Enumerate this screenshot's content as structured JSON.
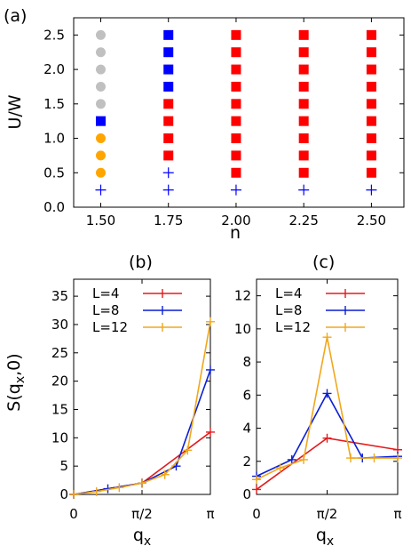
{
  "colors": {
    "gray": "#c0c0c0",
    "blue": "#0000ff",
    "red": "#ff0000",
    "orange": "#ffa500",
    "L4": "#e31a1c",
    "L8": "#0a1fd4",
    "L12": "#f0a71c"
  },
  "panels": {
    "a": {
      "label": "(a)"
    },
    "b": {
      "label": "(b)"
    },
    "c": {
      "label": "(c)"
    }
  },
  "chart_data": [
    {
      "panel": "(a)",
      "type": "scatter",
      "xlabel": "n",
      "ylabel": "U/W",
      "xlim": [
        1.4,
        2.62
      ],
      "ylim": [
        0.0,
        2.75
      ],
      "xticks": [
        "1.50",
        "1.75",
        "2.00",
        "2.25",
        "2.50"
      ],
      "yticks": [
        "0.0",
        "0.5",
        "1.0",
        "1.5",
        "2.0",
        "2.5"
      ],
      "grid": false,
      "marker_legend": {
        "gray-circle": "gray",
        "orange-circle": "orange",
        "blue-square": "blue",
        "red-square": "red",
        "blue-plus": "blue"
      },
      "columns": [
        {
          "x": 1.5,
          "markers": [
            "blue-plus",
            "orange-circle",
            "orange-circle",
            "orange-circle",
            "blue-square",
            "gray-circle",
            "gray-circle",
            "gray-circle",
            "gray-circle",
            "gray-circle"
          ]
        },
        {
          "x": 1.75,
          "markers": [
            "blue-plus",
            "blue-plus",
            "red-square",
            "red-square",
            "red-square",
            "red-square",
            "blue-square",
            "blue-square",
            "blue-square",
            "blue-square"
          ]
        },
        {
          "x": 2.0,
          "markers": [
            "blue-plus",
            "red-square",
            "red-square",
            "red-square",
            "red-square",
            "red-square",
            "red-square",
            "red-square",
            "red-square",
            "red-square"
          ]
        },
        {
          "x": 2.25,
          "markers": [
            "blue-plus",
            "red-square",
            "red-square",
            "red-square",
            "red-square",
            "red-square",
            "red-square",
            "red-square",
            "red-square",
            "red-square"
          ]
        },
        {
          "x": 2.5,
          "markers": [
            "blue-plus",
            "red-square",
            "red-square",
            "red-square",
            "red-square",
            "red-square",
            "red-square",
            "red-square",
            "red-square",
            "red-square"
          ]
        }
      ],
      "y_values": [
        0.25,
        0.5,
        0.75,
        1.0,
        1.25,
        1.5,
        1.75,
        2.0,
        2.25,
        2.5
      ]
    },
    {
      "panel": "(b)",
      "type": "line",
      "xlabel": "q",
      "xlabel_sub": "x",
      "ylabel": "S(q",
      "ylabel_sub": "x",
      "ylabel_tail": ",0)",
      "xlim": [
        0,
        3.14159
      ],
      "ylim": [
        0,
        38
      ],
      "xticks": [
        {
          "v": 0,
          "t": "0"
        },
        {
          "v": 1.5708,
          "t": "π/2"
        },
        {
          "v": 3.14159,
          "t": "π"
        }
      ],
      "yticks": [
        "0",
        "5",
        "10",
        "15",
        "20",
        "25",
        "30",
        "35"
      ],
      "legend_position": "top-left",
      "series": [
        {
          "name": "L=4",
          "color_key": "L4",
          "x": [
            0,
            1.5708,
            3.14159
          ],
          "y": [
            0,
            2.0,
            11.0
          ]
        },
        {
          "name": "L=8",
          "color_key": "L8",
          "x": [
            0,
            0.7854,
            1.5708,
            2.3562,
            3.14159
          ],
          "y": [
            0,
            1.0,
            2.0,
            5.0,
            22.0
          ]
        },
        {
          "name": "L=12",
          "color_key": "L12",
          "x": [
            0,
            0.5236,
            1.0472,
            1.5708,
            2.0944,
            2.618,
            3.14159
          ],
          "y": [
            0,
            0.5,
            1.2,
            2.0,
            3.5,
            7.8,
            30.5
          ]
        }
      ]
    },
    {
      "panel": "(c)",
      "type": "line",
      "xlabel": "q",
      "xlabel_sub": "x",
      "xlim": [
        0,
        3.14159
      ],
      "ylim": [
        0,
        13
      ],
      "xticks": [
        {
          "v": 0,
          "t": "0"
        },
        {
          "v": 1.5708,
          "t": "π/2"
        },
        {
          "v": 3.14159,
          "t": "π"
        }
      ],
      "yticks": [
        "0",
        "2",
        "4",
        "6",
        "8",
        "10",
        "12"
      ],
      "legend_position": "top-left",
      "series": [
        {
          "name": "L=4",
          "color_key": "L4",
          "x": [
            0,
            1.5708,
            3.14159
          ],
          "y": [
            0.3,
            3.4,
            2.7
          ]
        },
        {
          "name": "L=8",
          "color_key": "L8",
          "x": [
            0,
            0.7854,
            1.5708,
            2.3562,
            3.14159
          ],
          "y": [
            1.1,
            2.1,
            6.1,
            2.2,
            2.3
          ]
        },
        {
          "name": "L=12",
          "color_key": "L12",
          "x": [
            0,
            0.5236,
            1.0472,
            1.5708,
            2.0944,
            2.618,
            3.14159
          ],
          "y": [
            0.9,
            1.6,
            2.1,
            9.5,
            2.2,
            2.2,
            2.2
          ]
        }
      ]
    }
  ]
}
